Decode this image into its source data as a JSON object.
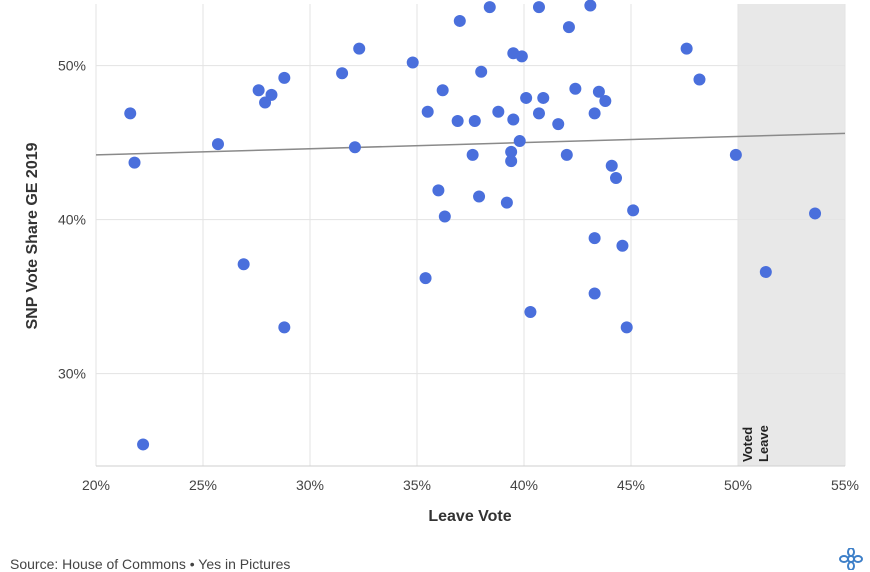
{
  "chart_data": {
    "type": "scatter",
    "xlabel": "Leave Vote",
    "ylabel": "SNP Vote Share GE 2019",
    "xlim": [
      20,
      55
    ],
    "ylim": [
      24,
      54
    ],
    "x_ticks": [
      20,
      25,
      30,
      35,
      40,
      45,
      50,
      55
    ],
    "x_tick_labels": [
      "20%",
      "25%",
      "30%",
      "35%",
      "40%",
      "45%",
      "50%",
      "55%"
    ],
    "y_ticks": [
      30,
      40,
      50
    ],
    "y_tick_labels": [
      "30%",
      "40%",
      "50%"
    ],
    "grid": true,
    "shaded_region": {
      "x_from": 50,
      "x_to": 55,
      "label_line1": "Voted",
      "label_line2": "Leave",
      "color": "#e8e8e8"
    },
    "trend_line": {
      "x": [
        20,
        55
      ],
      "y": [
        44.2,
        45.6
      ],
      "color": "#8a8a8a"
    },
    "point_color": "#4a6fdc",
    "points": [
      {
        "x": 21.6,
        "y": 46.9
      },
      {
        "x": 21.8,
        "y": 43.7
      },
      {
        "x": 22.2,
        "y": 25.4
      },
      {
        "x": 25.7,
        "y": 44.9
      },
      {
        "x": 26.9,
        "y": 37.1
      },
      {
        "x": 27.6,
        "y": 48.4
      },
      {
        "x": 27.9,
        "y": 47.6
      },
      {
        "x": 28.2,
        "y": 48.1
      },
      {
        "x": 28.8,
        "y": 49.2
      },
      {
        "x": 28.8,
        "y": 33.0
      },
      {
        "x": 31.5,
        "y": 49.5
      },
      {
        "x": 32.1,
        "y": 44.7
      },
      {
        "x": 32.3,
        "y": 51.1
      },
      {
        "x": 34.8,
        "y": 50.2
      },
      {
        "x": 35.4,
        "y": 36.2
      },
      {
        "x": 35.5,
        "y": 47.0
      },
      {
        "x": 36.0,
        "y": 41.9
      },
      {
        "x": 36.2,
        "y": 48.4
      },
      {
        "x": 36.3,
        "y": 40.2
      },
      {
        "x": 36.9,
        "y": 46.4
      },
      {
        "x": 37.0,
        "y": 52.9
      },
      {
        "x": 37.6,
        "y": 44.2
      },
      {
        "x": 37.7,
        "y": 46.4
      },
      {
        "x": 37.9,
        "y": 41.5
      },
      {
        "x": 38.0,
        "y": 49.6
      },
      {
        "x": 38.4,
        "y": 53.8
      },
      {
        "x": 38.8,
        "y": 47.0
      },
      {
        "x": 39.2,
        "y": 41.1
      },
      {
        "x": 39.4,
        "y": 44.4
      },
      {
        "x": 39.4,
        "y": 43.8
      },
      {
        "x": 39.5,
        "y": 46.5
      },
      {
        "x": 39.5,
        "y": 50.8
      },
      {
        "x": 39.8,
        "y": 45.1
      },
      {
        "x": 39.9,
        "y": 50.6
      },
      {
        "x": 40.1,
        "y": 47.9
      },
      {
        "x": 40.3,
        "y": 34.0
      },
      {
        "x": 40.7,
        "y": 46.9
      },
      {
        "x": 40.7,
        "y": 53.8
      },
      {
        "x": 40.9,
        "y": 47.9
      },
      {
        "x": 41.6,
        "y": 46.2
      },
      {
        "x": 42.0,
        "y": 44.2
      },
      {
        "x": 42.1,
        "y": 52.5
      },
      {
        "x": 42.4,
        "y": 48.5
      },
      {
        "x": 43.1,
        "y": 53.9
      },
      {
        "x": 43.3,
        "y": 38.8
      },
      {
        "x": 43.3,
        "y": 35.2
      },
      {
        "x": 43.3,
        "y": 46.9
      },
      {
        "x": 43.5,
        "y": 48.3
      },
      {
        "x": 43.8,
        "y": 47.7
      },
      {
        "x": 44.1,
        "y": 43.5
      },
      {
        "x": 44.3,
        "y": 42.7
      },
      {
        "x": 44.6,
        "y": 38.3
      },
      {
        "x": 44.8,
        "y": 33.0
      },
      {
        "x": 45.1,
        "y": 40.6
      },
      {
        "x": 47.6,
        "y": 51.1
      },
      {
        "x": 48.2,
        "y": 49.1
      },
      {
        "x": 49.9,
        "y": 44.2
      },
      {
        "x": 51.3,
        "y": 36.6
      },
      {
        "x": 53.6,
        "y": 40.4
      }
    ]
  },
  "footer": {
    "source_text": "Source: House of Commons • Yes in Pictures",
    "logo_icon": "flower-logo-icon"
  }
}
